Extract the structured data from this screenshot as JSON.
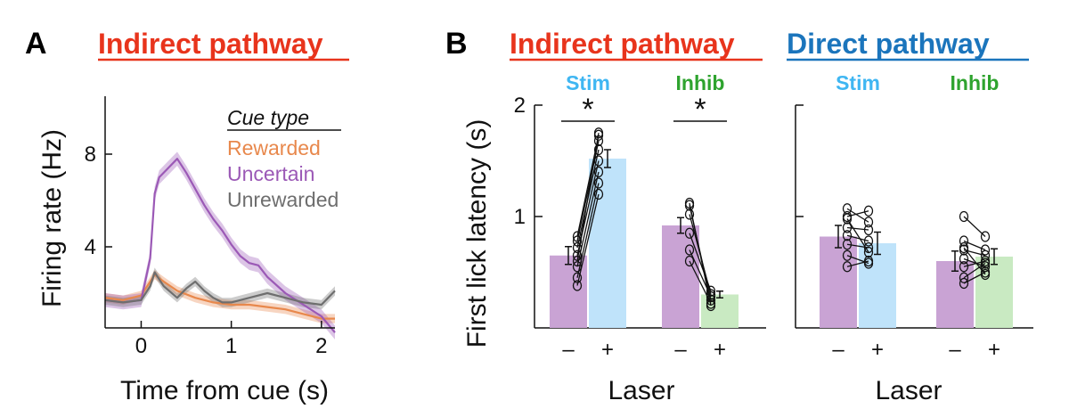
{
  "panel_a": {
    "letter": "A",
    "title": "Indirect pathway",
    "title_color": "#e8341c",
    "legend_title": "Cue type"
  },
  "panel_b": {
    "letter": "B",
    "laser_signs": [
      "–",
      "+"
    ]
  },
  "colors": {
    "rewarded": "#e8884c",
    "uncertain": "#9b59b6",
    "unrewarded": "#6e6e6e",
    "stim": "#3fb6f2",
    "inhib": "#2ea32e",
    "indirect": "#e8341c",
    "direct": "#1b75bc",
    "bar_off": "#c9a3d4",
    "bar_stim": "#bfe3fa",
    "bar_inhib": "#c9eac2"
  },
  "chart_data": [
    {
      "type": "line",
      "title": "Indirect pathway",
      "xlabel": "Time from cue (s)",
      "ylabel": "Firing rate (Hz)",
      "xlim": [
        -0.4,
        2.15
      ],
      "ylim": [
        0.5,
        10.5
      ],
      "xticks": [
        0,
        1,
        2
      ],
      "xtick_labels": [
        "0",
        "1",
        "2"
      ],
      "yticks": [
        4,
        8
      ],
      "ytick_labels": [
        "4",
        "8"
      ],
      "legend_title": "Cue type",
      "legend_position": "top-right",
      "series": [
        {
          "name": "Rewarded",
          "color": "#e8884c",
          "x": [
            -0.4,
            -0.2,
            0,
            0.1,
            0.15,
            0.25,
            0.4,
            0.6,
            0.8,
            1.0,
            1.2,
            1.4,
            1.6,
            1.8,
            2.0,
            2.15
          ],
          "y": [
            1.8,
            1.7,
            1.9,
            2.5,
            2.8,
            2.5,
            2.1,
            1.8,
            1.6,
            1.5,
            1.5,
            1.4,
            1.3,
            1.1,
            0.9,
            0.9
          ],
          "err": 0.2
        },
        {
          "name": "Uncertain",
          "color": "#9b59b6",
          "x": [
            -0.4,
            -0.2,
            0,
            0.1,
            0.15,
            0.2,
            0.3,
            0.4,
            0.5,
            0.6,
            0.7,
            0.8,
            0.9,
            1.0,
            1.1,
            1.2,
            1.3,
            1.4,
            1.6,
            1.8,
            2.0,
            2.15
          ],
          "y": [
            1.7,
            1.6,
            1.7,
            3.5,
            6.3,
            7.0,
            7.4,
            7.8,
            7.2,
            6.5,
            5.8,
            5.2,
            4.7,
            4.1,
            3.6,
            3.3,
            3.2,
            2.7,
            2.0,
            1.5,
            1.0,
            0.3
          ],
          "err": 0.3
        },
        {
          "name": "Unrewarded",
          "color": "#6e6e6e",
          "x": [
            -0.4,
            -0.2,
            0,
            0.1,
            0.15,
            0.25,
            0.4,
            0.5,
            0.6,
            0.7,
            0.8,
            0.9,
            1.0,
            1.2,
            1.4,
            1.6,
            1.8,
            2.0,
            2.15
          ],
          "y": [
            1.7,
            1.6,
            1.7,
            2.3,
            2.9,
            2.3,
            1.8,
            2.2,
            2.5,
            2.1,
            1.8,
            1.6,
            1.6,
            1.8,
            2.0,
            1.8,
            1.6,
            1.5,
            2.1
          ],
          "err": 0.2
        }
      ]
    },
    {
      "type": "bar",
      "title": "Indirect pathway",
      "title_color": "#e8341c",
      "xlabel": "Laser",
      "ylabel": "First lick latency (s)",
      "ylim": [
        0,
        2
      ],
      "yticks": [
        1,
        2
      ],
      "ytick_labels": [
        "1",
        "2"
      ],
      "groups": [
        {
          "label": "Stim",
          "label_color": "#3fb6f2",
          "off_color": "#c9a3d4",
          "on_color": "#bfe3fa",
          "values": [
            0.65,
            1.52
          ],
          "err": [
            0.08,
            0.08
          ],
          "significant": true,
          "star": "*",
          "pairs": [
            [
              0.38,
              1.2
            ],
            [
              0.45,
              1.3
            ],
            [
              0.55,
              1.4
            ],
            [
              0.65,
              1.5
            ],
            [
              0.72,
              1.6
            ],
            [
              0.78,
              1.68
            ],
            [
              0.82,
              1.73
            ],
            [
              0.6,
              1.75
            ]
          ]
        },
        {
          "label": "Inhib",
          "label_color": "#2ea32e",
          "off_color": "#c9a3d4",
          "on_color": "#c9eac2",
          "values": [
            0.92,
            0.3
          ],
          "err": [
            0.07,
            0.03
          ],
          "significant": true,
          "star": "*",
          "pairs": [
            [
              1.12,
              0.2
            ],
            [
              1.1,
              0.25
            ],
            [
              1.02,
              0.3
            ],
            [
              0.85,
              0.33
            ],
            [
              0.7,
              0.28
            ],
            [
              0.6,
              0.22
            ]
          ]
        }
      ]
    },
    {
      "type": "bar",
      "title": "Direct pathway",
      "title_color": "#1b75bc",
      "xlabel": "Laser",
      "ylim": [
        0,
        2
      ],
      "yticks": [
        1,
        2
      ],
      "groups": [
        {
          "label": "Stim",
          "label_color": "#3fb6f2",
          "off_color": "#c9a3d4",
          "on_color": "#bfe3fa",
          "values": [
            0.82,
            0.76
          ],
          "err": [
            0.1,
            0.1
          ],
          "significant": false,
          "pairs": [
            [
              1.07,
              0.95
            ],
            [
              1.0,
              1.05
            ],
            [
              0.9,
              0.88
            ],
            [
              0.83,
              0.78
            ],
            [
              0.75,
              0.72
            ],
            [
              0.65,
              0.58
            ],
            [
              0.55,
              0.6
            ],
            [
              0.98,
              0.68
            ]
          ]
        },
        {
          "label": "Inhib",
          "label_color": "#2ea32e",
          "off_color": "#c9a3d4",
          "on_color": "#c9eac2",
          "values": [
            0.6,
            0.64
          ],
          "err": [
            0.09,
            0.07
          ],
          "significant": false,
          "pairs": [
            [
              1.0,
              0.82
            ],
            [
              0.78,
              0.7
            ],
            [
              0.7,
              0.65
            ],
            [
              0.62,
              0.55
            ],
            [
              0.55,
              0.6
            ],
            [
              0.45,
              0.58
            ],
            [
              0.4,
              0.5
            ],
            [
              0.72,
              0.48
            ]
          ]
        }
      ]
    }
  ]
}
